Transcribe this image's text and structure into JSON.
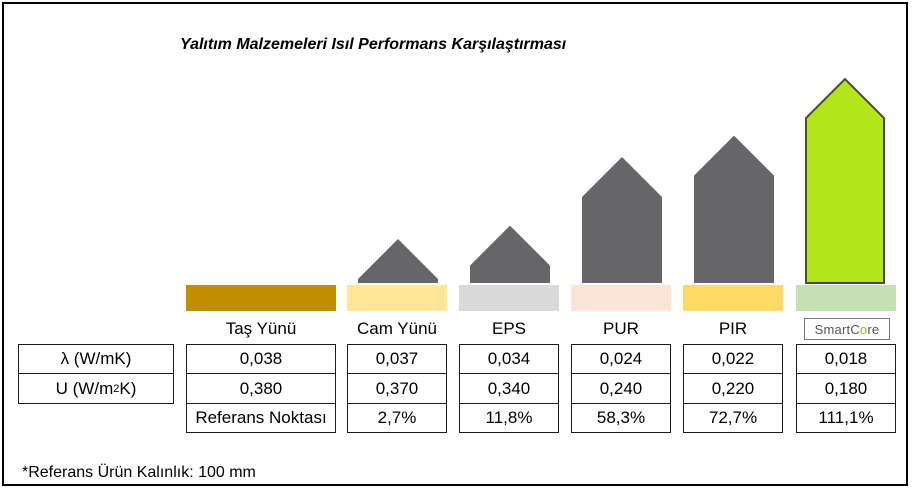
{
  "title": "Yalıtım Malzemeleri Isıl Performans Karşılaştırması",
  "colors": {
    "house_gray": "#666668",
    "house_highlight": "#b5e61d",
    "bar_colors": [
      "#bf8f00",
      "#ffe699",
      "#d9d9d9",
      "#fce4d6",
      "#ffd966",
      "#c6e0b4"
    ]
  },
  "chart_data": {
    "type": "bar",
    "title": "Yalıtım Malzemeleri Isıl Performans Karşılaştırması",
    "categories": [
      "Taş Yünü",
      "Cam Yünü",
      "EPS",
      "PUR",
      "PIR",
      "SmartCore"
    ],
    "values": [
      0,
      2.7,
      11.8,
      58.3,
      72.7,
      111.1
    ],
    "unit": "%",
    "xlabel": "",
    "ylabel": "",
    "ylim": [
      0,
      111.1
    ]
  },
  "table": {
    "headers": [
      "Taş Yünü",
      "Cam Yünü",
      "EPS",
      "PUR",
      "PIR"
    ],
    "logo_text": "SmartCore",
    "rows": [
      {
        "label": "λ (W/mK)",
        "cells": [
          "0,038",
          "0,037",
          "0,034",
          "0,024",
          "0,022",
          "0,018"
        ]
      },
      {
        "label_main": "U (W/m",
        "label_sup": "2",
        "label_end": "K)",
        "cells": [
          "0,380",
          "0,370",
          "0,340",
          "0,240",
          "0,220",
          "0,180"
        ]
      },
      {
        "label": "",
        "cells": [
          "Referans Noktası",
          "2,7%",
          "11,8%",
          "58,3%",
          "72,7%",
          "111,1%"
        ]
      }
    ]
  },
  "footnote": "*Referans Ürün Kalınlık: 100 mm"
}
